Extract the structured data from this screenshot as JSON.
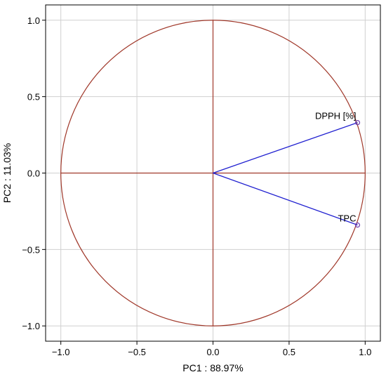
{
  "chart_data": {
    "type": "scatter",
    "subtype": "pca-correlation-circle",
    "title": "",
    "xlabel": "PC1 : 88.97%",
    "ylabel": "PC2 : 11.03%",
    "xlim": [
      -1.1,
      1.1
    ],
    "ylim": [
      -1.1,
      1.1
    ],
    "x_ticks": [
      -1.0,
      -0.5,
      0.0,
      0.5,
      1.0
    ],
    "y_ticks": [
      -1.0,
      -0.5,
      0.0,
      0.5,
      1.0
    ],
    "x_tick_labels": [
      "−1.0",
      "−0.5",
      "0.0",
      "0.5",
      "1.0"
    ],
    "y_tick_labels": [
      "−1.0",
      "−0.5",
      "0.0",
      "0.5",
      "1.0"
    ],
    "grid": true,
    "unit_circle_radius": 1.0,
    "variables": [
      {
        "name": "DPPH [%]",
        "x": 0.95,
        "y": 0.33
      },
      {
        "name": "TPC",
        "x": 0.95,
        "y": -0.34
      }
    ],
    "colors": {
      "circle": "#a0382a",
      "axes_lines": "#a0382a",
      "vectors": "#2020d0",
      "points": "#7040b0",
      "grid": "#d0d0d0"
    }
  }
}
